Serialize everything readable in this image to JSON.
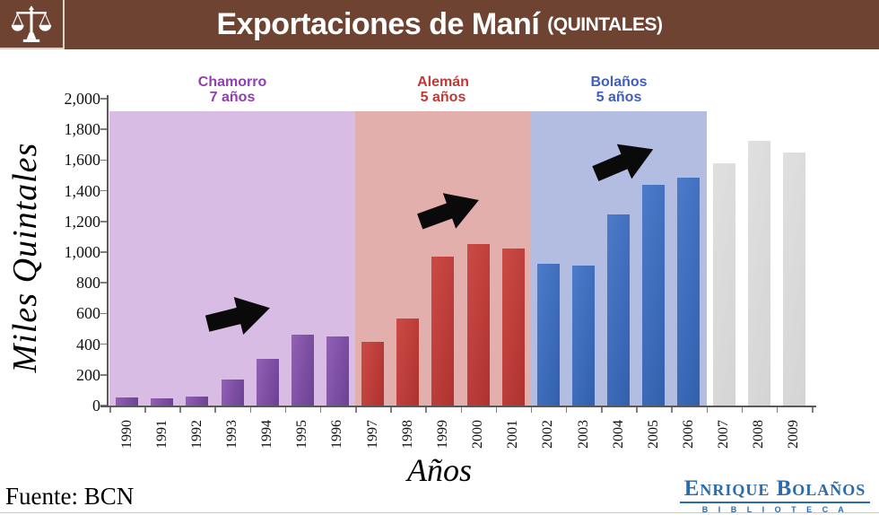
{
  "header": {
    "title": "Exportaciones de Maní",
    "subtitle": "(QUINTALES)",
    "icon": "scales-of-justice",
    "bg_color": "#6F4331"
  },
  "chart_data": {
    "type": "bar",
    "title": "Exportaciones de Maní (QUINTALES)",
    "xlabel": "Años",
    "ylabel": "Miles Quintales",
    "ylim": [
      0,
      2000
    ],
    "yticks": [
      0,
      200,
      400,
      600,
      800,
      1000,
      1200,
      1400,
      1600,
      1800,
      2000
    ],
    "ytick_labels": [
      "0",
      "200",
      "400",
      "600",
      "800",
      "1,000",
      "1,200",
      "1,400",
      "1,600",
      "1,800",
      "2,000"
    ],
    "grid": false,
    "legend": "none",
    "categories": [
      "1990",
      "1991",
      "1992",
      "1993",
      "1994",
      "1995",
      "1996",
      "1997",
      "1998",
      "1999",
      "2000",
      "2001",
      "2002",
      "2003",
      "2004",
      "2005",
      "2006",
      "2007",
      "2008",
      "2009"
    ],
    "values": [
      50,
      45,
      60,
      170,
      305,
      460,
      450,
      415,
      565,
      970,
      1055,
      1025,
      925,
      910,
      1245,
      1440,
      1485,
      1580,
      1725,
      1650
    ],
    "band_top_value": 1920,
    "periods": [
      {
        "name": "Chamorro",
        "duration": "7 años",
        "start_index": 0,
        "end_index": 6,
        "label_color": "#8E3FB0",
        "band_color": "#D9BCE4",
        "bar_color_light": "#9260B5",
        "bar_color_dark": "#6B4192"
      },
      {
        "name": "Alemán",
        "duration": "5 años",
        "start_index": 7,
        "end_index": 11,
        "label_color": "#BE3A34",
        "band_color": "#E2AFAC",
        "bar_color_light": "#CC4A46",
        "bar_color_dark": "#AE322F"
      },
      {
        "name": "Bolaños",
        "duration": "5 años",
        "start_index": 12,
        "end_index": 16,
        "label_color": "#3E5FC1",
        "band_color": "#B3BDE1",
        "bar_color_light": "#4C7BCC",
        "bar_color_dark": "#3160AC"
      },
      {
        "name": "",
        "duration": "",
        "start_index": 17,
        "end_index": 19,
        "label_color": "",
        "band_color": "",
        "bar_color_light": "#E0E0E0",
        "bar_color_dark": "#D4D4D4"
      }
    ],
    "annotations": [
      {
        "type": "up-right-arrow",
        "period": "Chamorro"
      },
      {
        "type": "up-right-arrow",
        "period": "Alemán"
      },
      {
        "type": "up-right-arrow",
        "period": "Bolaños"
      }
    ]
  },
  "footer": {
    "source": "Fuente: BCN",
    "logo_title": "Enrique Bolaños",
    "logo_subtitle": "B I B L I O T E C A"
  }
}
